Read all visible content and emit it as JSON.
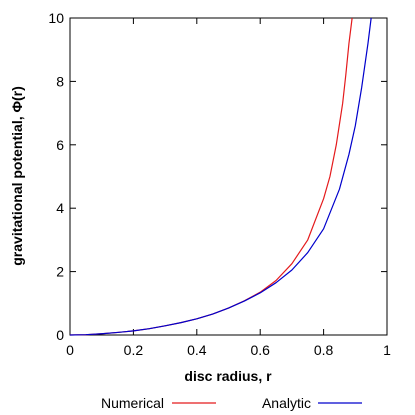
{
  "chart_data": {
    "type": "line",
    "xlabel": "disc radius, r",
    "ylabel": "gravitational potential, Φ(r)",
    "xlim": [
      0,
      1
    ],
    "ylim": [
      0,
      10
    ],
    "xticks": [
      "0",
      "0.2",
      "0.4",
      "0.6",
      "0.8",
      "1"
    ],
    "yticks": [
      "0",
      "2",
      "4",
      "6",
      "8",
      "10"
    ],
    "grid": false,
    "legend_position": "bottom",
    "series": [
      {
        "name": "Numerical",
        "color": "#e41a1c",
        "x": [
          0,
          0.05,
          0.1,
          0.15,
          0.2,
          0.25,
          0.3,
          0.35,
          0.4,
          0.45,
          0.5,
          0.55,
          0.6,
          0.65,
          0.7,
          0.75,
          0.8,
          0.82,
          0.84,
          0.86,
          0.87,
          0.88,
          0.89
        ],
        "y": [
          0,
          0.01,
          0.04,
          0.08,
          0.13,
          0.2,
          0.29,
          0.39,
          0.51,
          0.66,
          0.85,
          1.08,
          1.35,
          1.72,
          2.25,
          3.0,
          4.3,
          5.0,
          6.0,
          7.3,
          8.2,
          9.2,
          10.0
        ]
      },
      {
        "name": "Analytic",
        "color": "#0000cc",
        "x": [
          0,
          0.05,
          0.1,
          0.15,
          0.2,
          0.25,
          0.3,
          0.35,
          0.4,
          0.45,
          0.5,
          0.55,
          0.6,
          0.65,
          0.7,
          0.75,
          0.8,
          0.85,
          0.88,
          0.9,
          0.92,
          0.94,
          0.95
        ],
        "y": [
          0,
          0.01,
          0.04,
          0.08,
          0.13,
          0.2,
          0.29,
          0.39,
          0.51,
          0.66,
          0.85,
          1.07,
          1.33,
          1.65,
          2.05,
          2.6,
          3.35,
          4.6,
          5.7,
          6.6,
          7.8,
          9.2,
          10.0
        ]
      }
    ]
  }
}
